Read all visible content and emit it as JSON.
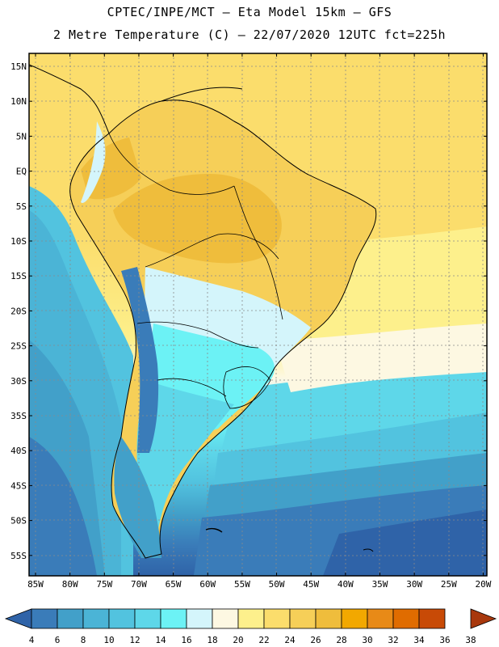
{
  "header": {
    "line1": "CPTEC/INPE/MCT –  Eta Model 15km – GFS",
    "line2": "2 Metre Temperature (C) – 22/07/2020 12UTC fct=225h"
  },
  "map": {
    "lat_labels": [
      "15N",
      "10N",
      "5N",
      "EQ",
      "5S",
      "10S",
      "15S",
      "20S",
      "25S",
      "30S",
      "35S",
      "40S",
      "45S",
      "50S",
      "55S"
    ],
    "lon_labels": [
      "85W",
      "80W",
      "75W",
      "70W",
      "65W",
      "60W",
      "55W",
      "50W",
      "45W",
      "40W",
      "35W",
      "30W",
      "25W",
      "20W"
    ]
  },
  "colorbar": {
    "ticks": [
      "4",
      "6",
      "8",
      "10",
      "12",
      "14",
      "16",
      "18",
      "20",
      "22",
      "24",
      "26",
      "28",
      "30",
      "32",
      "34",
      "36",
      "38"
    ],
    "colors": [
      "#2f63a8",
      "#3a7cb9",
      "#42a0c9",
      "#4bb4d6",
      "#52c3df",
      "#5ed7e9",
      "#6cf2f5",
      "#d4f5fb",
      "#fdf8e2",
      "#fdf08c",
      "#fbdd6c",
      "#f6cf58",
      "#efbd3c",
      "#f2a800",
      "#e88a17",
      "#e06c00",
      "#c84a06",
      "#a8380d"
    ]
  }
}
